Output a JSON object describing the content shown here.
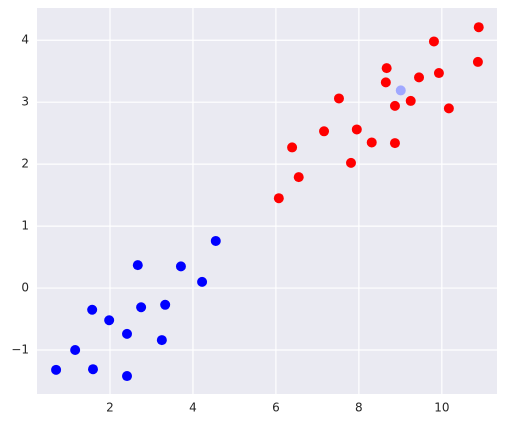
{
  "chart_data": {
    "type": "scatter",
    "series": [
      {
        "color": "#0000ff",
        "x": [
          0.7,
          1.16,
          1.59,
          1.57,
          1.98,
          2.41,
          2.41,
          2.67,
          2.75,
          3.25,
          3.33,
          3.71,
          4.22,
          4.55
        ],
        "values": [
          -1.32,
          -1.0,
          -1.31,
          -0.35,
          -0.52,
          -0.74,
          -1.42,
          0.37,
          -0.31,
          -0.84,
          -0.27,
          0.35,
          0.1,
          0.76
        ]
      },
      {
        "color": "#ff0000",
        "x": [
          6.07,
          6.39,
          6.55,
          7.16,
          7.52,
          7.81,
          7.95,
          8.31,
          8.65,
          8.67,
          8.87,
          8.87,
          9.25,
          9.45,
          9.81,
          9.93,
          10.17,
          10.87,
          10.89
        ],
        "values": [
          1.45,
          2.27,
          1.79,
          2.53,
          3.06,
          2.02,
          2.56,
          2.35,
          3.32,
          3.55,
          2.94,
          2.34,
          3.02,
          3.4,
          3.98,
          3.47,
          2.9,
          3.65,
          4.21
        ]
      },
      {
        "color": "#a0a8ff",
        "x": [
          9.01
        ],
        "values": [
          3.19
        ]
      }
    ],
    "xlim": [
      0.24,
      11.33
    ],
    "ylim": [
      -1.71,
      4.52
    ],
    "xticks": [
      2,
      4,
      6,
      8,
      10
    ],
    "yticks": [
      {
        "value": -1,
        "label": "−1"
      },
      0,
      1,
      2,
      3,
      4
    ],
    "grid": true,
    "background": "#eaeaf2"
  }
}
